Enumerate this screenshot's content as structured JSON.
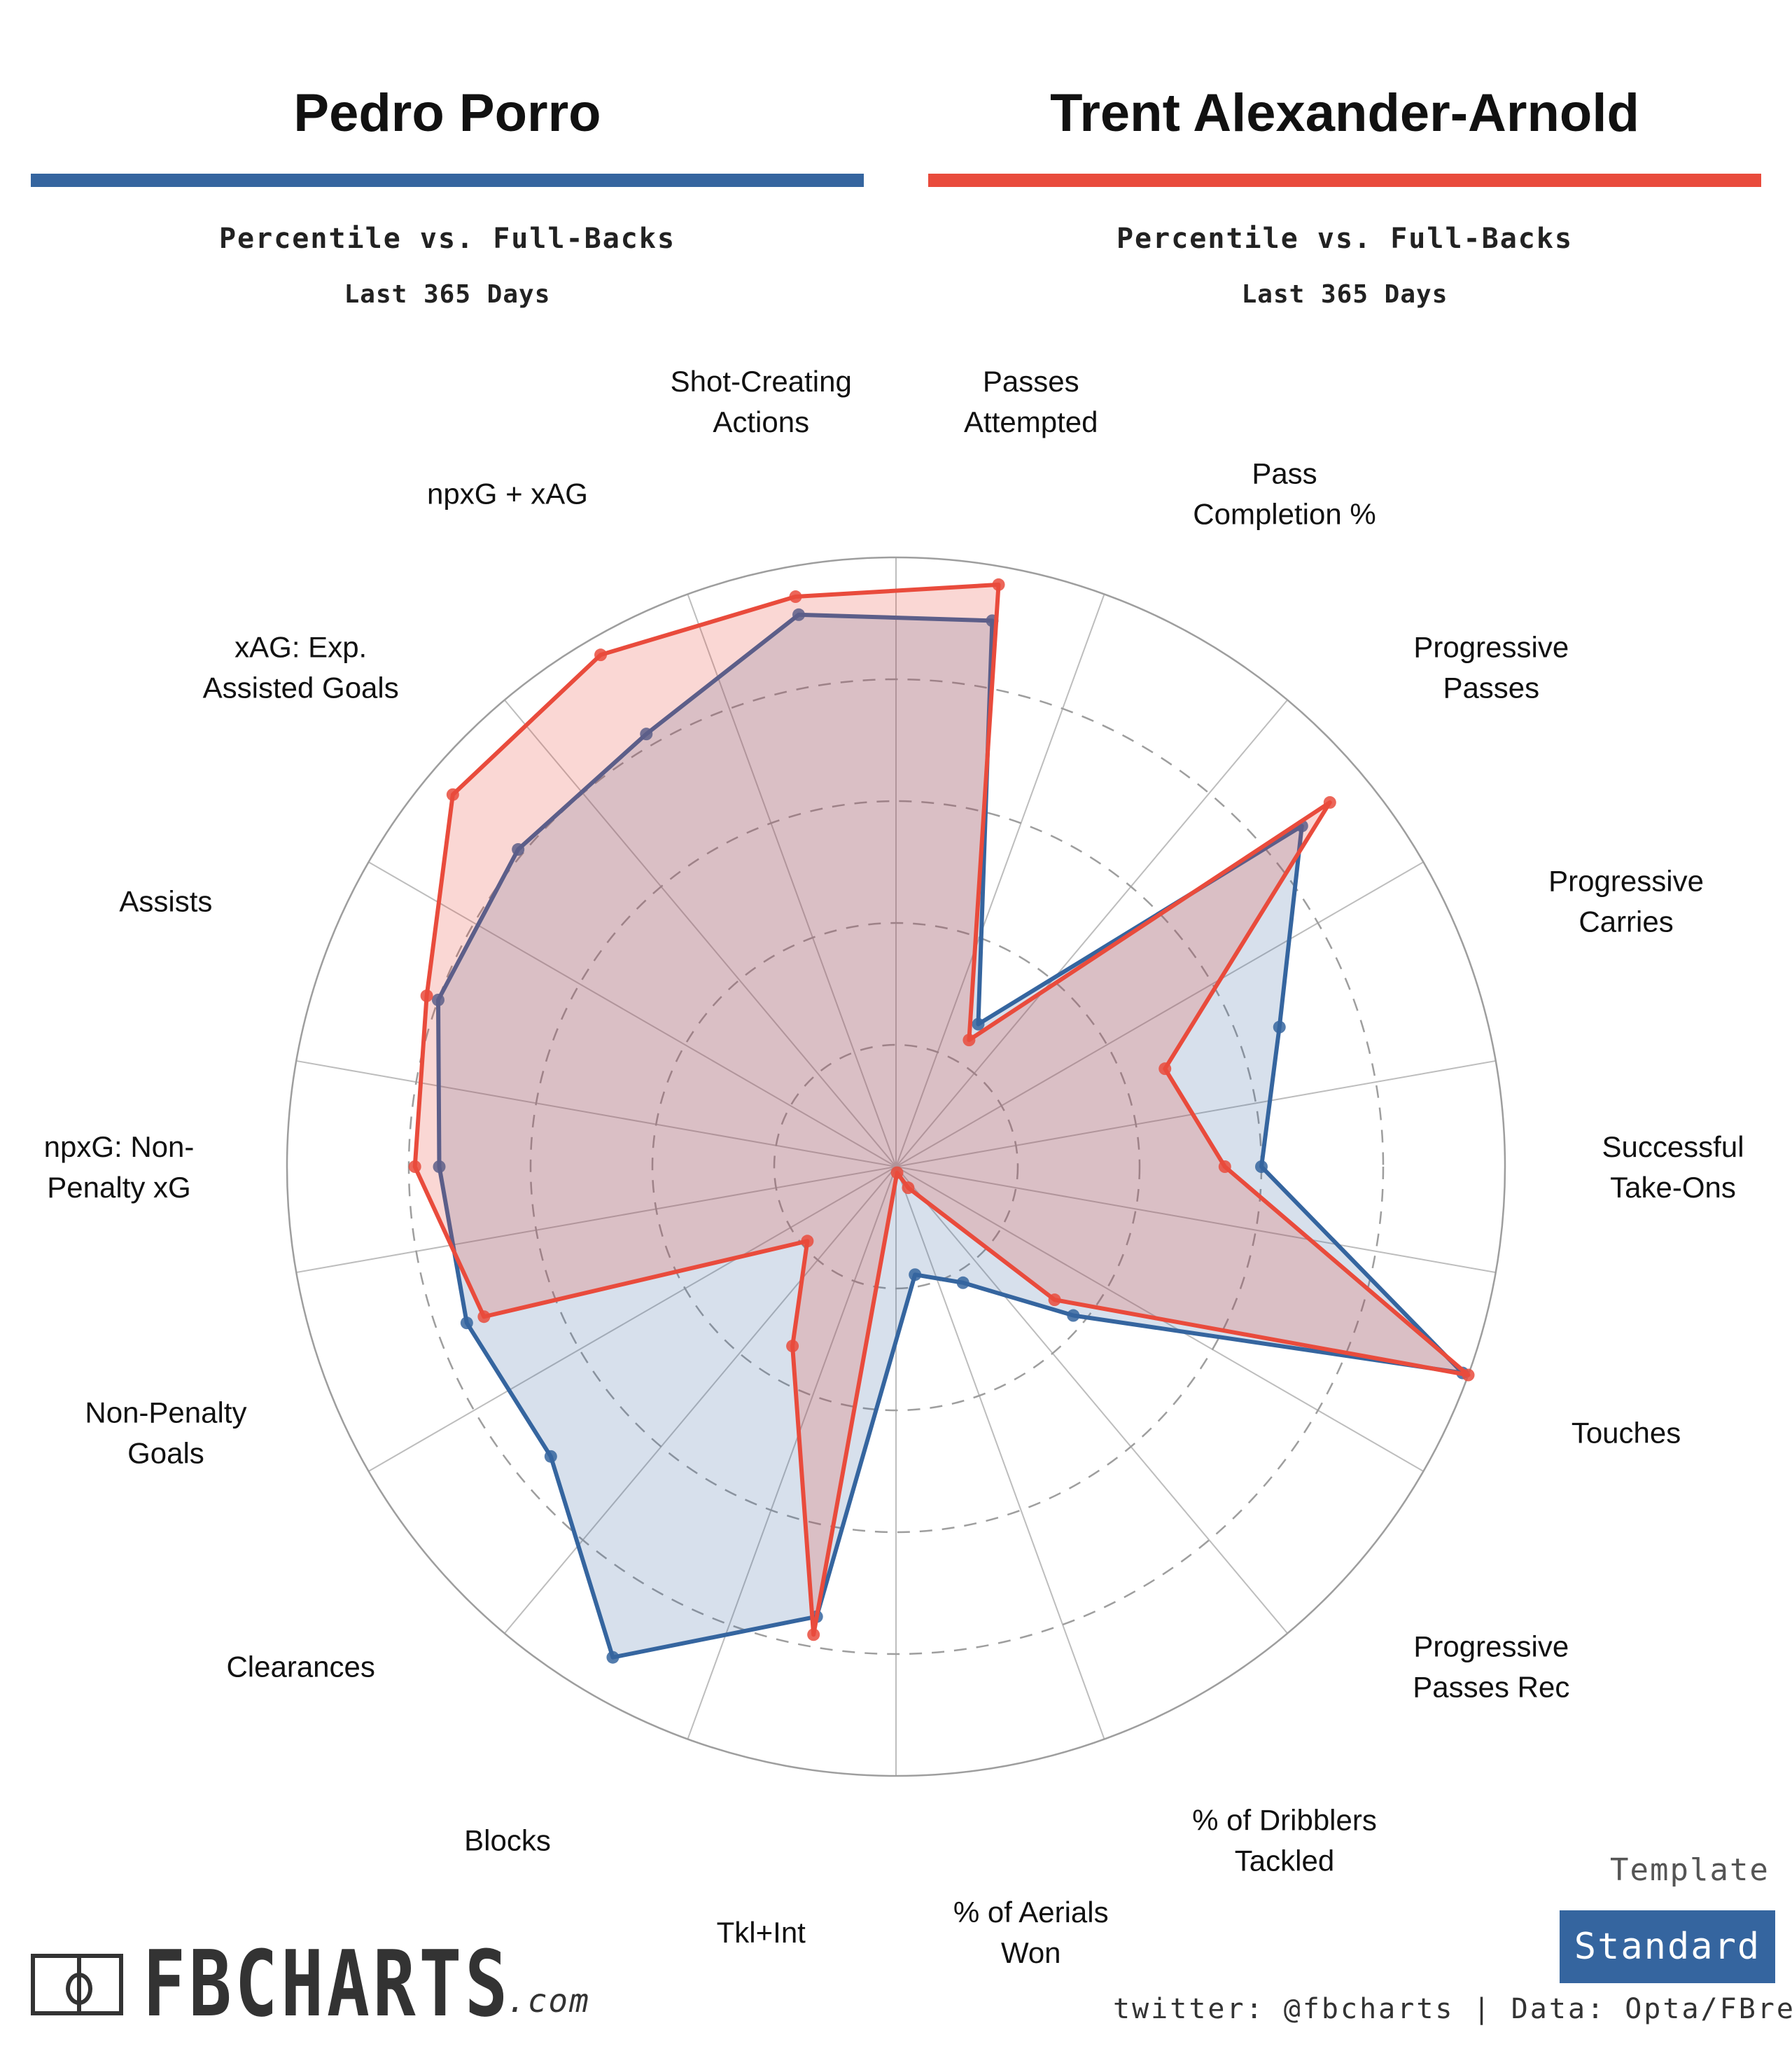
{
  "header": {
    "players": [
      {
        "name": "Pedro Porro",
        "color": "#35659f",
        "subtitle": "Percentile vs. Full-Backs",
        "period": "Last 365 Days"
      },
      {
        "name": "Trent Alexander-Arnold",
        "color": "#e94b3c",
        "subtitle": "Percentile vs. Full-Backs",
        "period": "Last 365 Days"
      }
    ]
  },
  "chart_data": {
    "type": "radar",
    "categories": [
      [
        "Passes",
        "Attempted"
      ],
      [
        "Pass",
        "Completion %"
      ],
      [
        "Progressive",
        "Passes"
      ],
      [
        "Progressive",
        "Carries"
      ],
      [
        "Successful",
        "Take-Ons"
      ],
      [
        "Touches"
      ],
      [
        "Progressive",
        "Passes Rec"
      ],
      [
        "% of Dribblers",
        "Tackled"
      ],
      [
        "% of Aerials",
        "Won"
      ],
      [
        "Tkl+Int"
      ],
      [
        "Blocks"
      ],
      [
        "Clearances"
      ],
      [
        "Non-Penalty",
        "Goals"
      ],
      [
        "npxG: Non-",
        "Penalty xG"
      ],
      [
        "Assists"
      ],
      [
        "xAG: Exp.",
        "Assisted Goals"
      ],
      [
        "npxG + xAG"
      ],
      [
        "Shot-Creating",
        "Actions"
      ]
    ],
    "rlim": [
      0,
      100
    ],
    "series": [
      {
        "name": "Pedro Porro",
        "color": "#35659f",
        "values": [
          91,
          27,
          87,
          67,
          60,
          99,
          38,
          22,
          18,
          75,
          93,
          74,
          75,
          75,
          80,
          81,
          82,
          92
        ]
      },
      {
        "name": "Trent Alexander-Arnold",
        "color": "#e94b3c",
        "values": [
          97,
          24,
          93,
          47,
          54,
          100,
          34,
          4,
          1,
          78,
          34,
          19,
          72,
          79,
          82,
          95,
          97,
          95
        ]
      }
    ]
  },
  "template": {
    "label": "Template",
    "button": "Standard",
    "button_color": "#35659f"
  },
  "footer": {
    "logo_text": "FBCHARTS",
    "logo_suffix": ".com",
    "credit": "twitter: @fbcharts | Data: Opta/FBref"
  }
}
